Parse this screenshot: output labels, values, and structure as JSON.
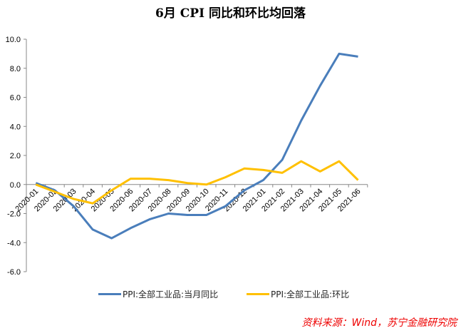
{
  "title": "6月 CPI 同比和环比均回落",
  "source": "资料来源：Wind，苏宁金融研究院",
  "chart_data": {
    "type": "line",
    "title": "6月 CPI 同比和环比均回落",
    "categories": [
      "2020-01",
      "2020-02",
      "2020-03",
      "2020-04",
      "2020-05",
      "2020-06",
      "2020-07",
      "2020-08",
      "2020-09",
      "2020-10",
      "2020-11",
      "2020-12",
      "2021-01",
      "2021-02",
      "2021-03",
      "2021-04",
      "2021-05",
      "2021-06"
    ],
    "series": [
      {
        "name": "PPI:全部工业品:当月同比",
        "color": "#4a7ebb",
        "values": [
          0.1,
          -0.4,
          -1.5,
          -3.1,
          -3.7,
          -3.0,
          -2.4,
          -2.0,
          -2.1,
          -2.1,
          -1.5,
          -0.4,
          0.3,
          1.7,
          4.4,
          6.8,
          9.0,
          8.8
        ]
      },
      {
        "name": "PPI:全部工业品:环比",
        "color": "#ffc000",
        "values": [
          0.0,
          -0.5,
          -1.0,
          -1.3,
          -0.4,
          0.4,
          0.4,
          0.3,
          0.1,
          0.0,
          0.5,
          1.1,
          1.0,
          0.8,
          1.6,
          0.9,
          1.6,
          0.3
        ]
      }
    ],
    "ylim": [
      -6,
      10
    ],
    "yticks": [
      "10.0",
      "8.0",
      "6.0",
      "4.0",
      "2.0",
      "0.0",
      "-2.0",
      "-4.0",
      "-6.0"
    ],
    "grid": false,
    "legend": "bottom"
  }
}
